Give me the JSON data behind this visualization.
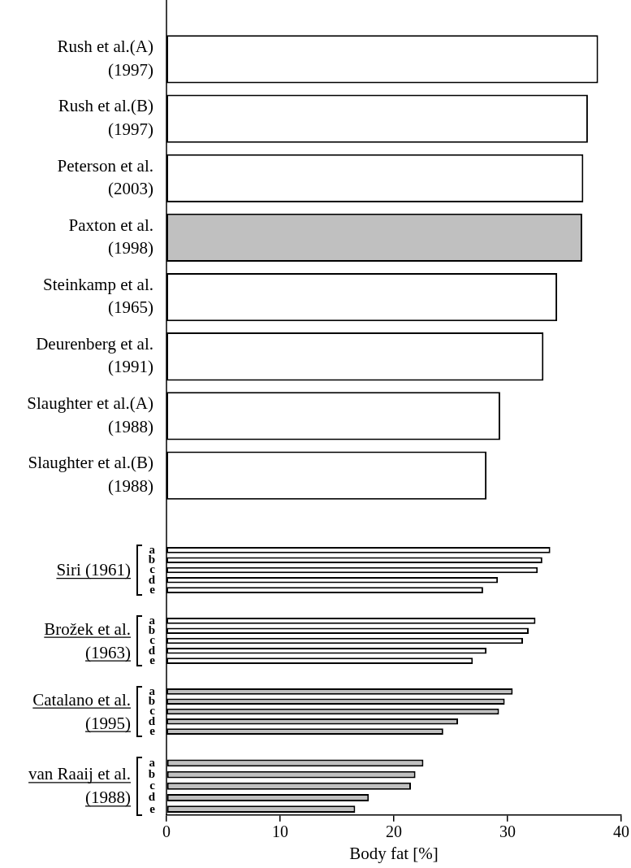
{
  "chart_data": [
    {
      "type": "bar",
      "orientation": "horizontal",
      "categories": [
        "Rush et al.(A) (1997)",
        "Rush et al.(B) (1997)",
        "Peterson et al. (2003)",
        "Paxton et al. (1998)",
        "Steinkamp et al. (1965)",
        "Deurenberg et al. (1991)",
        "Slaughter et al.(A) (1988)",
        "Slaughter et al.(B) (1988)"
      ],
      "values": [
        37.9,
        37.0,
        36.6,
        36.5,
        34.3,
        33.1,
        29.3,
        28.1
      ],
      "colors": [
        "#ffffff",
        "#ffffff",
        "#ffffff",
        "#c0c0c0",
        "#ffffff",
        "#ffffff",
        "#ffffff",
        "#ffffff"
      ],
      "xlim": [
        0,
        40
      ],
      "xticks": [
        0,
        10,
        20,
        30,
        40
      ],
      "tick_labels": "y"
    },
    {
      "type": "bar",
      "orientation": "horizontal",
      "categories": [
        "a",
        "b",
        "c",
        "d",
        "e"
      ],
      "values": [
        33.7,
        33.0,
        32.6,
        29.1,
        27.8
      ],
      "color": "#ffffff",
      "xlim": [
        0,
        40
      ],
      "xticks": [
        0,
        10,
        20,
        30,
        40
      ],
      "tick_labels": "y",
      "annotations": [
        "Siri (1961)"
      ]
    },
    {
      "type": "bar",
      "orientation": "horizontal",
      "categories": [
        "a",
        "b",
        "c",
        "d",
        "e"
      ],
      "values": [
        32.4,
        31.8,
        31.3,
        28.1,
        26.9
      ],
      "color": "#ffffff",
      "xlim": [
        0,
        40
      ],
      "xticks": [
        0,
        10,
        20,
        30,
        40
      ],
      "tick_labels": "y",
      "annotations": [
        "Brožek et al. (1963)"
      ]
    },
    {
      "type": "bar",
      "orientation": "horizontal",
      "categories": [
        "a",
        "b",
        "c",
        "d",
        "e"
      ],
      "values": [
        30.4,
        29.7,
        29.2,
        25.6,
        24.3
      ],
      "color": "#c0c0c0",
      "xlim": [
        0,
        40
      ],
      "xticks": [
        0,
        10,
        20,
        30,
        40
      ],
      "tick_labels": "y",
      "annotations": [
        "Catalano et al. (1995)"
      ]
    },
    {
      "type": "bar",
      "orientation": "horizontal",
      "categories": [
        "a",
        "b",
        "c",
        "d",
        "e"
      ],
      "values": [
        22.6,
        21.9,
        21.5,
        17.8,
        16.6
      ],
      "color": "#c0c0c0",
      "xlim": [
        0,
        40
      ],
      "xticks": [
        0,
        10,
        20,
        30,
        40
      ],
      "xlabel": "Body fat [%]",
      "annotations": [
        "van Raaij et al. (1988)"
      ]
    }
  ]
}
